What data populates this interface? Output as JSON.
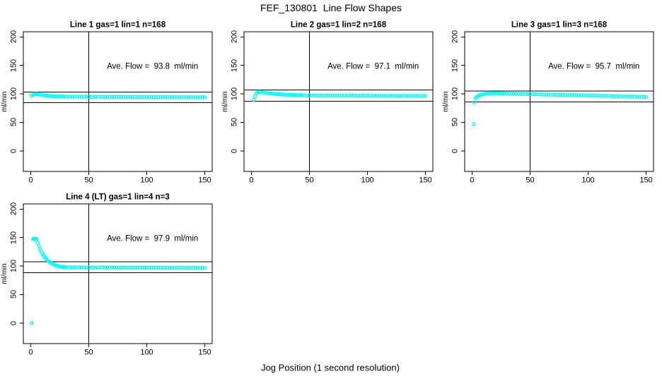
{
  "title": "FEF_130801  Line Flow Shapes",
  "xlabel": "Jog Position (1 second resolution)",
  "ylabel": "ml/min",
  "colors": {
    "points": "#00FFFF",
    "axis": "#000000",
    "background": "#FFFFFF"
  },
  "axes": {
    "x_range": [
      -6.4,
      156.4
    ],
    "y_range": [
      -36,
      209
    ],
    "x_ticks": [
      0,
      50,
      100,
      150
    ],
    "y_ticks": [
      0,
      50,
      100,
      150,
      200
    ],
    "x_tick_labels": [
      "0",
      "50",
      "100",
      "150"
    ],
    "y_tick_labels": [
      "0",
      "50",
      "100",
      "150",
      "200"
    ],
    "grid": "off"
  },
  "chart_data": [
    {
      "type": "scatter",
      "title": "Line 1 gas=1 lin=1 n=168",
      "annotation": "Ave. Flow =  93.8  ml/min",
      "ave_flow": 93.8,
      "grid": {
        "row": 0,
        "col": 0
      },
      "ref_lines": {
        "vline_x": 50,
        "upper": 103.2,
        "lower": 84.4
      },
      "points": [
        [
          0.5,
          96.5
        ],
        [
          2,
          98.4
        ],
        [
          3,
          99.5
        ],
        [
          4,
          100
        ],
        [
          5,
          100
        ],
        [
          6,
          99.6
        ],
        [
          7.5,
          99
        ],
        [
          9,
          98.4
        ],
        [
          10.5,
          97.9
        ],
        [
          12,
          97.4
        ],
        [
          13.5,
          97
        ],
        [
          15,
          96.7
        ],
        [
          16.5,
          96.4
        ],
        [
          18,
          96.2
        ],
        [
          19.5,
          96
        ],
        [
          21,
          95.8
        ],
        [
          22.5,
          95.7
        ],
        [
          24,
          95.6
        ],
        [
          25.5,
          95.5
        ],
        [
          27,
          95.4
        ],
        [
          28.5,
          95.4
        ],
        [
          30,
          95.3
        ],
        [
          32,
          95.1
        ],
        [
          34,
          95.3
        ],
        [
          36,
          95
        ],
        [
          38,
          95.2
        ],
        [
          40,
          94.9
        ],
        [
          42,
          95.2
        ],
        [
          44,
          94.9
        ],
        [
          46,
          95.1
        ],
        [
          48,
          94.8
        ],
        [
          50,
          95.1
        ],
        [
          52,
          94.8
        ],
        [
          54,
          95
        ],
        [
          56,
          94.7
        ],
        [
          58,
          95
        ],
        [
          60,
          94.7
        ],
        [
          62,
          94.9
        ],
        [
          64,
          94.6
        ],
        [
          66,
          94.9
        ],
        [
          68,
          94.6
        ],
        [
          70,
          94.8
        ],
        [
          72,
          94.6
        ],
        [
          74,
          94.8
        ],
        [
          76,
          94.5
        ],
        [
          78,
          94.8
        ],
        [
          80,
          94.5
        ],
        [
          82,
          94.7
        ],
        [
          84,
          94.4
        ],
        [
          86,
          94.7
        ],
        [
          88,
          94.4
        ],
        [
          90,
          94.6
        ],
        [
          92,
          94.4
        ],
        [
          94,
          94.6
        ],
        [
          96,
          94.3
        ],
        [
          98,
          94.6
        ],
        [
          100,
          94.3
        ],
        [
          102,
          94.5
        ],
        [
          104,
          94.3
        ],
        [
          106,
          94.5
        ],
        [
          108,
          94.2
        ],
        [
          110,
          94.5
        ],
        [
          112,
          94.2
        ],
        [
          114,
          94.4
        ],
        [
          116,
          94.2
        ],
        [
          118,
          94.4
        ],
        [
          120,
          94.1
        ],
        [
          122,
          94.4
        ],
        [
          124,
          94.1
        ],
        [
          126,
          94.3
        ],
        [
          128,
          94.1
        ],
        [
          130,
          94.3
        ],
        [
          132,
          94
        ],
        [
          134,
          94.3
        ],
        [
          136,
          94
        ],
        [
          138,
          94.2
        ],
        [
          140,
          94
        ],
        [
          142,
          94.2
        ],
        [
          144,
          93.9
        ],
        [
          146,
          94.2
        ],
        [
          148,
          94
        ],
        [
          150,
          94.1
        ]
      ]
    },
    {
      "type": "scatter",
      "title": "Line 2 gas=1 lin=2 n=168",
      "annotation": "Ave. Flow =  97.1  ml/min",
      "ave_flow": 97.1,
      "grid": {
        "row": 0,
        "col": 1
      },
      "ref_lines": {
        "vline_x": 50,
        "upper": 106.8,
        "lower": 87.4
      },
      "points": [
        [
          2,
          90
        ],
        [
          3,
          95.5
        ],
        [
          4,
          100.6
        ],
        [
          5,
          102.3
        ],
        [
          6,
          103.2
        ],
        [
          7,
          103.5
        ],
        [
          8,
          103.3
        ],
        [
          9.5,
          102.8
        ],
        [
          11,
          102.3
        ],
        [
          12.5,
          101.8
        ],
        [
          14,
          101.4
        ],
        [
          15.5,
          101
        ],
        [
          17,
          100.7
        ],
        [
          18.5,
          100.4
        ],
        [
          20,
          100.1
        ],
        [
          21.5,
          99.8
        ],
        [
          23,
          99.6
        ],
        [
          24.5,
          99.4
        ],
        [
          26,
          99.1
        ],
        [
          27.5,
          98.9
        ],
        [
          29,
          98.7
        ],
        [
          30.5,
          98.6
        ],
        [
          32,
          98.4
        ],
        [
          33.5,
          98.2
        ],
        [
          35,
          98.1
        ],
        [
          36.5,
          98
        ],
        [
          38,
          97.9
        ],
        [
          39.5,
          97.8
        ],
        [
          41,
          97.7
        ],
        [
          42.5,
          97.6
        ],
        [
          44,
          97.5
        ],
        [
          46,
          97.4
        ],
        [
          48,
          97.4
        ],
        [
          50,
          97.3
        ],
        [
          52,
          97.2
        ],
        [
          54,
          97.2
        ],
        [
          56,
          97.1
        ],
        [
          58,
          97
        ],
        [
          60,
          97.2
        ],
        [
          62,
          96.9
        ],
        [
          64,
          97.1
        ],
        [
          66,
          96.9
        ],
        [
          68,
          97.1
        ],
        [
          70,
          96.8
        ],
        [
          72,
          97.1
        ],
        [
          74,
          96.8
        ],
        [
          76,
          97
        ],
        [
          78,
          96.8
        ],
        [
          80,
          97
        ],
        [
          82,
          96.7
        ],
        [
          84,
          97
        ],
        [
          86,
          96.7
        ],
        [
          88,
          96.9
        ],
        [
          90,
          96.7
        ],
        [
          92,
          96.9
        ],
        [
          94,
          96.7
        ],
        [
          96,
          96.9
        ],
        [
          98,
          96.6
        ],
        [
          100,
          96.9
        ],
        [
          102,
          96.6
        ],
        [
          104,
          96.8
        ],
        [
          106,
          96.6
        ],
        [
          108,
          96.8
        ],
        [
          110,
          96.5
        ],
        [
          112,
          96.8
        ],
        [
          114,
          96.5
        ],
        [
          116,
          96.8
        ],
        [
          118,
          96.5
        ],
        [
          120,
          96.7
        ],
        [
          122,
          96.5
        ],
        [
          124,
          96.7
        ],
        [
          126,
          96.4
        ],
        [
          128,
          96.7
        ],
        [
          130,
          96.4
        ],
        [
          132,
          96.7
        ],
        [
          134,
          96.4
        ],
        [
          136,
          96.6
        ],
        [
          138,
          96.4
        ],
        [
          140,
          96.6
        ],
        [
          142,
          96.4
        ],
        [
          144,
          96.6
        ],
        [
          146,
          96.3
        ],
        [
          148,
          96.6
        ],
        [
          150,
          96.5
        ]
      ]
    },
    {
      "type": "scatter",
      "title": "Line 3 gas=1 lin=3 n=168",
      "annotation": "Ave. Flow =  95.7  ml/min",
      "ave_flow": 95.7,
      "grid": {
        "row": 0,
        "col": 2
      },
      "ref_lines": {
        "vline_x": 50,
        "upper": 105.3,
        "lower": 86.1
      },
      "points": [
        [
          1.5,
          47
        ],
        [
          2,
          85
        ],
        [
          3,
          92.5
        ],
        [
          4,
          94.6
        ],
        [
          5,
          96
        ],
        [
          6,
          97.2
        ],
        [
          7,
          98
        ],
        [
          8.5,
          98.9
        ],
        [
          10,
          99.6
        ],
        [
          11.5,
          100.1
        ],
        [
          13,
          100.5
        ],
        [
          14.5,
          100.7
        ],
        [
          16,
          100.9
        ],
        [
          17.5,
          101
        ],
        [
          19,
          101.1
        ],
        [
          20.5,
          101.1
        ],
        [
          22,
          101
        ],
        [
          23.5,
          101
        ],
        [
          25,
          100.9
        ],
        [
          26.5,
          100.8
        ],
        [
          28,
          100.7
        ],
        [
          30,
          100.5
        ],
        [
          32,
          100.5
        ],
        [
          34,
          100.3
        ],
        [
          36,
          100.3
        ],
        [
          38,
          100.1
        ],
        [
          40,
          100.1
        ],
        [
          42,
          99.9
        ],
        [
          44,
          99.9
        ],
        [
          46,
          99.7
        ],
        [
          48,
          99.7
        ],
        [
          50,
          99.5
        ],
        [
          52,
          99.5
        ],
        [
          54,
          99.4
        ],
        [
          56,
          99.3
        ],
        [
          58,
          99.2
        ],
        [
          60,
          99.1
        ],
        [
          62,
          99
        ],
        [
          64,
          98.9
        ],
        [
          66,
          98.8
        ],
        [
          68,
          98.8
        ],
        [
          70,
          98.6
        ],
        [
          72,
          98.6
        ],
        [
          74,
          98.4
        ],
        [
          76,
          98.4
        ],
        [
          78,
          98.2
        ],
        [
          80,
          98.2
        ],
        [
          82,
          98
        ],
        [
          84,
          98
        ],
        [
          86,
          97.9
        ],
        [
          88,
          97.8
        ],
        [
          90,
          97.7
        ],
        [
          92,
          97.6
        ],
        [
          94,
          97.5
        ],
        [
          96,
          97.4
        ],
        [
          98,
          97.3
        ],
        [
          100,
          97.2
        ],
        [
          102,
          97.1
        ],
        [
          104,
          97
        ],
        [
          106,
          96.9
        ],
        [
          108,
          96.8
        ],
        [
          110,
          96.7
        ],
        [
          112,
          96.6
        ],
        [
          114,
          96.5
        ],
        [
          116,
          96.4
        ],
        [
          118,
          96.3
        ],
        [
          120,
          96.1
        ],
        [
          122,
          96.1
        ],
        [
          124,
          95.9
        ],
        [
          126,
          95.9
        ],
        [
          128,
          95.7
        ],
        [
          130,
          95.7
        ],
        [
          132,
          95.5
        ],
        [
          134,
          95.5
        ],
        [
          136,
          95.3
        ],
        [
          138,
          95.3
        ],
        [
          140,
          95.1
        ],
        [
          142,
          95.1
        ],
        [
          144,
          94.9
        ],
        [
          146,
          94.8
        ],
        [
          148,
          94.6
        ],
        [
          150,
          94.5
        ]
      ]
    },
    {
      "type": "scatter",
      "title": "Line 4 (LT) gas=1 lin=4 n=3",
      "annotation": "Ave. Flow =  97.9  ml/min",
      "ave_flow": 97.9,
      "grid": {
        "row": 1,
        "col": 0
      },
      "ref_lines": {
        "vline_x": 50,
        "upper": 107.7,
        "lower": 88.1
      },
      "points": [
        [
          1,
          0
        ],
        [
          2,
          147.4
        ],
        [
          2.7,
          147.9
        ],
        [
          3.4,
          147.3
        ],
        [
          4.2,
          147.7
        ],
        [
          5,
          147.2
        ],
        [
          6,
          140.9
        ],
        [
          7,
          135.1
        ],
        [
          8,
          130.1
        ],
        [
          9,
          125.8
        ],
        [
          10,
          122
        ],
        [
          11,
          118.7
        ],
        [
          12,
          115.9
        ],
        [
          13,
          113.4
        ],
        [
          14,
          111.3
        ],
        [
          15,
          109.3
        ],
        [
          16,
          107.6
        ],
        [
          17,
          106.1
        ],
        [
          18,
          104.8
        ],
        [
          19,
          103.6
        ],
        [
          20,
          102.6
        ],
        [
          21,
          101.7
        ],
        [
          22,
          100.9
        ],
        [
          23,
          100.3
        ],
        [
          24,
          99.7
        ],
        [
          25,
          99.2
        ],
        [
          26,
          98.8
        ],
        [
          27,
          98.5
        ],
        [
          28,
          98.2
        ],
        [
          29,
          98
        ],
        [
          30,
          97.9
        ],
        [
          32,
          97.7
        ],
        [
          34,
          97.9
        ],
        [
          36,
          97.6
        ],
        [
          38,
          97.8
        ],
        [
          40,
          97.5
        ],
        [
          42,
          97.8
        ],
        [
          44,
          97.5
        ],
        [
          46,
          97.7
        ],
        [
          48,
          97.4
        ],
        [
          50,
          97.7
        ],
        [
          52,
          97.4
        ],
        [
          54,
          97.6
        ],
        [
          56,
          97.4
        ],
        [
          58,
          97.6
        ],
        [
          60,
          97.3
        ],
        [
          62,
          97.6
        ],
        [
          64,
          97.3
        ],
        [
          66,
          97.5
        ],
        [
          68,
          97.3
        ],
        [
          70,
          97.5
        ],
        [
          72,
          97.2
        ],
        [
          74,
          97.5
        ],
        [
          76,
          97.2
        ],
        [
          78,
          97.4
        ],
        [
          80,
          97.2
        ],
        [
          82,
          97.4
        ],
        [
          84,
          97.1
        ],
        [
          86,
          97.4
        ],
        [
          88,
          97.1
        ],
        [
          90,
          97.3
        ],
        [
          92,
          97.1
        ],
        [
          94,
          97.3
        ],
        [
          96,
          97
        ],
        [
          98,
          97.3
        ],
        [
          100,
          97
        ],
        [
          102,
          97.2
        ],
        [
          104,
          97
        ],
        [
          106,
          97.2
        ],
        [
          108,
          96.9
        ],
        [
          110,
          97.2
        ],
        [
          112,
          96.9
        ],
        [
          114,
          97.1
        ],
        [
          116,
          96.9
        ],
        [
          118,
          97.1
        ],
        [
          120,
          96.8
        ],
        [
          122,
          97.1
        ],
        [
          124,
          96.8
        ],
        [
          126,
          97
        ],
        [
          128,
          96.8
        ],
        [
          130,
          97
        ],
        [
          132,
          96.7
        ],
        [
          134,
          97
        ],
        [
          136,
          96.7
        ],
        [
          138,
          96.9
        ],
        [
          140,
          96.7
        ],
        [
          142,
          96.9
        ],
        [
          144,
          96.6
        ],
        [
          146,
          96.9
        ],
        [
          148,
          96.6
        ],
        [
          150,
          96.8
        ]
      ]
    }
  ]
}
